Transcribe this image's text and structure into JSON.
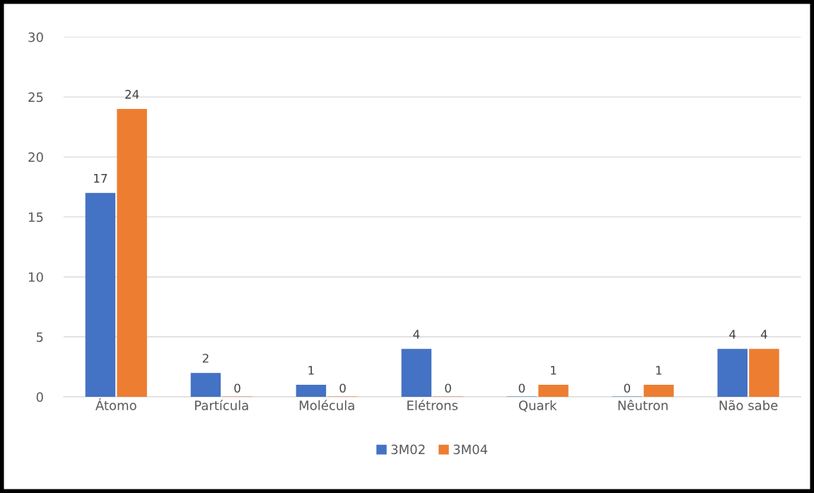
{
  "chart_data": {
    "type": "bar",
    "categories": [
      "Átomo",
      "Partícula",
      "Molécula",
      "Elétrons",
      "Quark",
      "Nêutron",
      "Não sabe"
    ],
    "series": [
      {
        "name": "3M02",
        "color": "#4472c4",
        "values": [
          17,
          2,
          1,
          4,
          0,
          0,
          4
        ]
      },
      {
        "name": "3M04",
        "color": "#ed7d31",
        "values": [
          24,
          0,
          0,
          0,
          1,
          1,
          4
        ]
      }
    ],
    "ylim": [
      0,
      30
    ],
    "yticks": [
      0,
      5,
      10,
      15,
      20,
      25,
      30
    ],
    "grid": "y",
    "legend": "bottom",
    "data_labels": true
  }
}
